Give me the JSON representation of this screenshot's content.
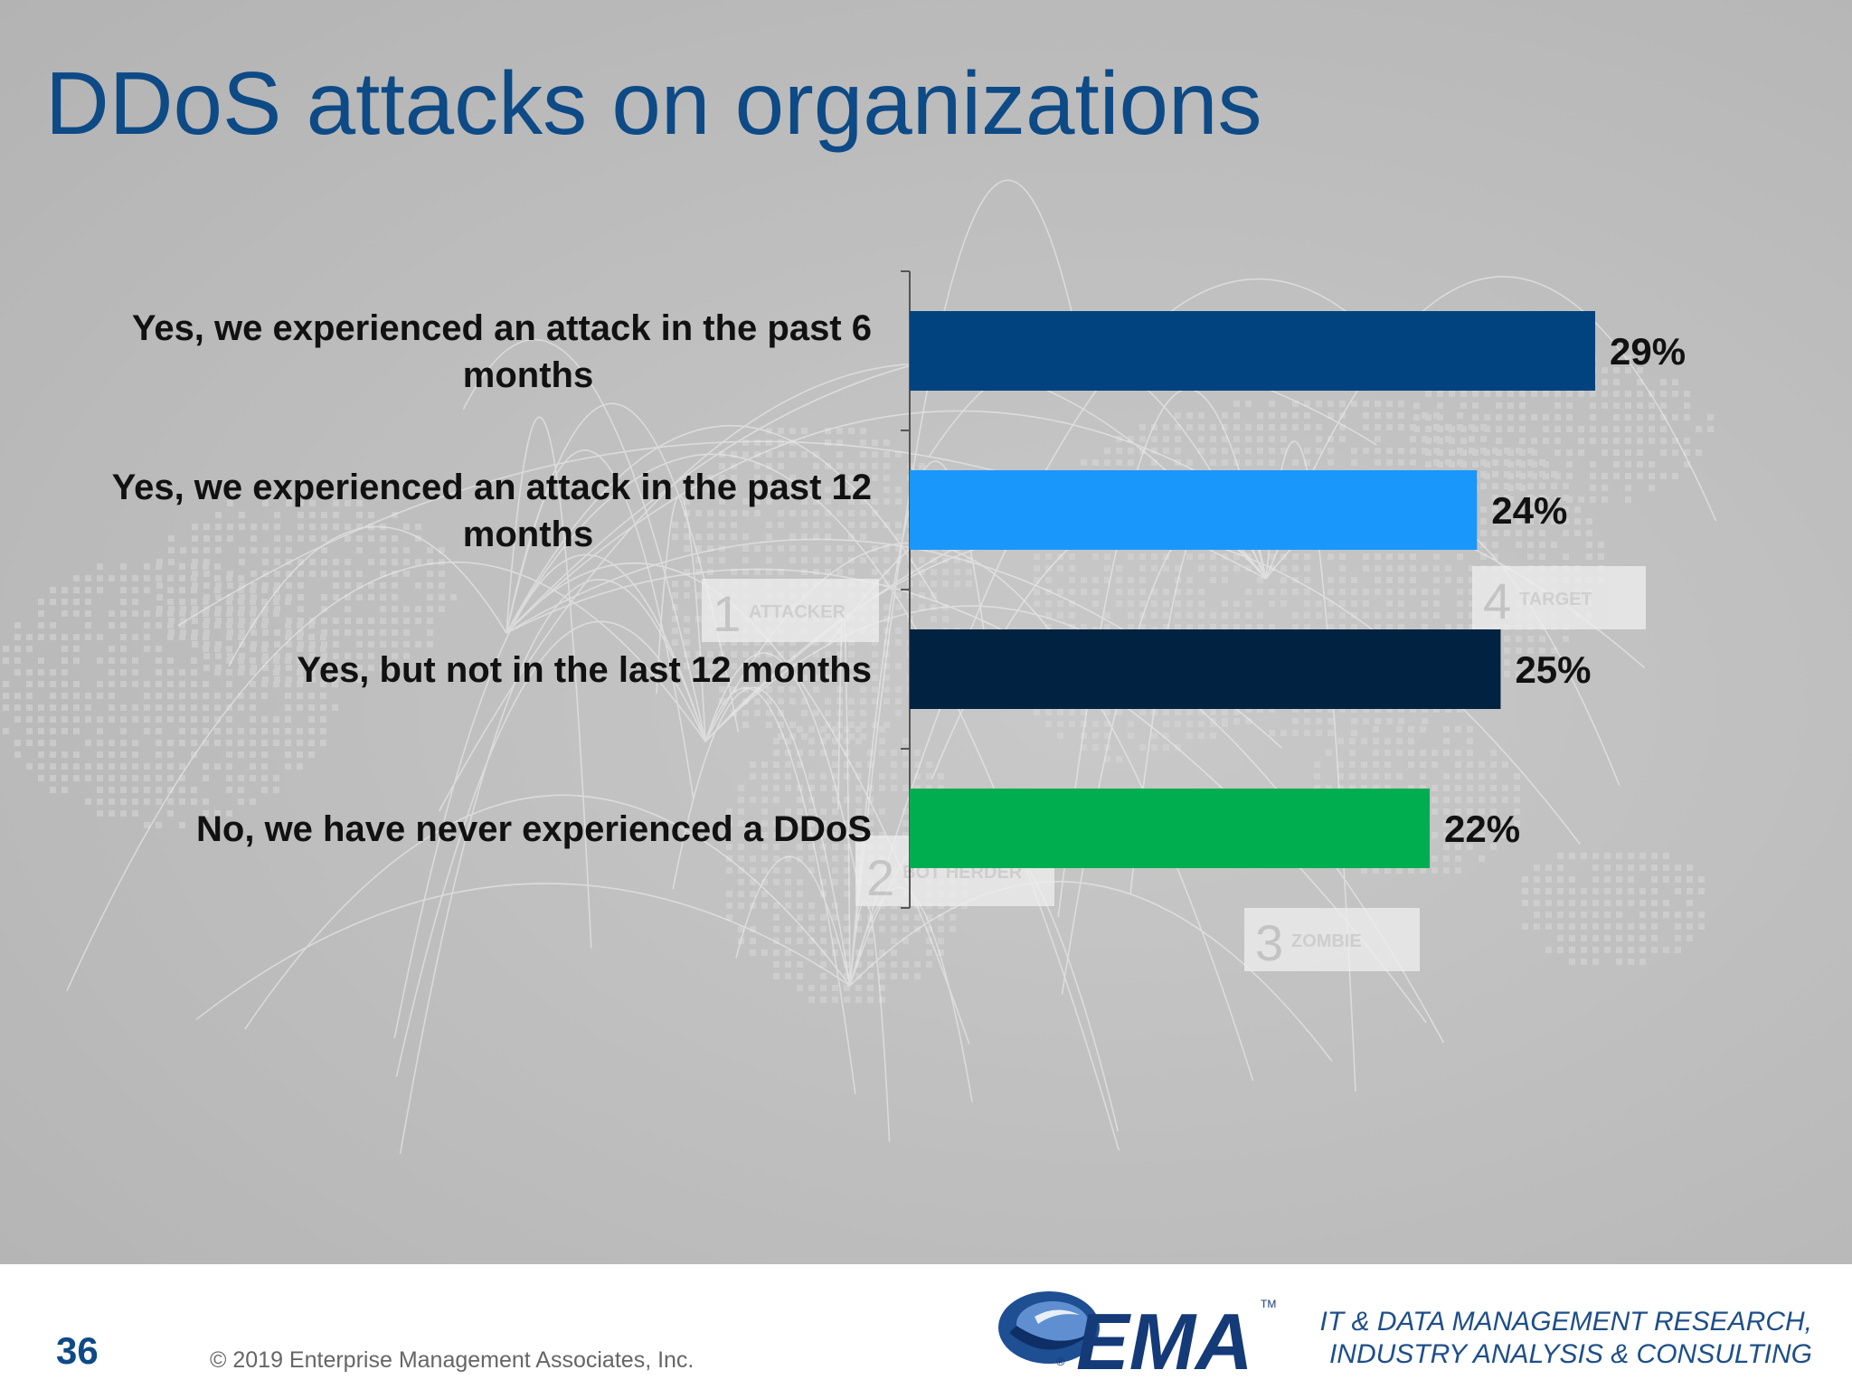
{
  "slide": {
    "title": "DDoS attacks on organizations",
    "page_number": "36"
  },
  "background": {
    "panels": [
      {
        "number": "1",
        "label": "ATTACKER"
      },
      {
        "number": "2",
        "label": "BOT HERDER"
      },
      {
        "number": "3",
        "label": "ZOMBIE"
      },
      {
        "number": "4",
        "label": "TARGET"
      }
    ]
  },
  "chart_data": {
    "type": "bar",
    "orientation": "horizontal",
    "title": "",
    "xlabel": "",
    "ylabel": "",
    "grid": false,
    "xlim": [
      0,
      30
    ],
    "categories": [
      [
        "Yes, we experienced an attack in the past 6",
        "months"
      ],
      [
        "Yes, we experienced an attack in the past 12",
        "months"
      ],
      [
        "Yes, but not in the last 12 months"
      ],
      [
        "No, we have  never experienced a DDoS"
      ]
    ],
    "values": [
      29,
      24,
      25,
      22
    ],
    "value_labels": [
      "29%",
      "24%",
      "25%",
      "22%"
    ],
    "colors": [
      "#00437e",
      "#1a97fb",
      "#012240",
      "#00ae50"
    ]
  },
  "footer": {
    "copyright": "© 2019 Enterprise Management Associates, Inc.",
    "logo_text": "EMA",
    "logo_tm": "TM",
    "logo_reg": "®",
    "tagline_lines": [
      "IT & DATA MANAGEMENT RESEARCH,",
      "INDUSTRY ANALYSIS & CONSULTING"
    ]
  }
}
